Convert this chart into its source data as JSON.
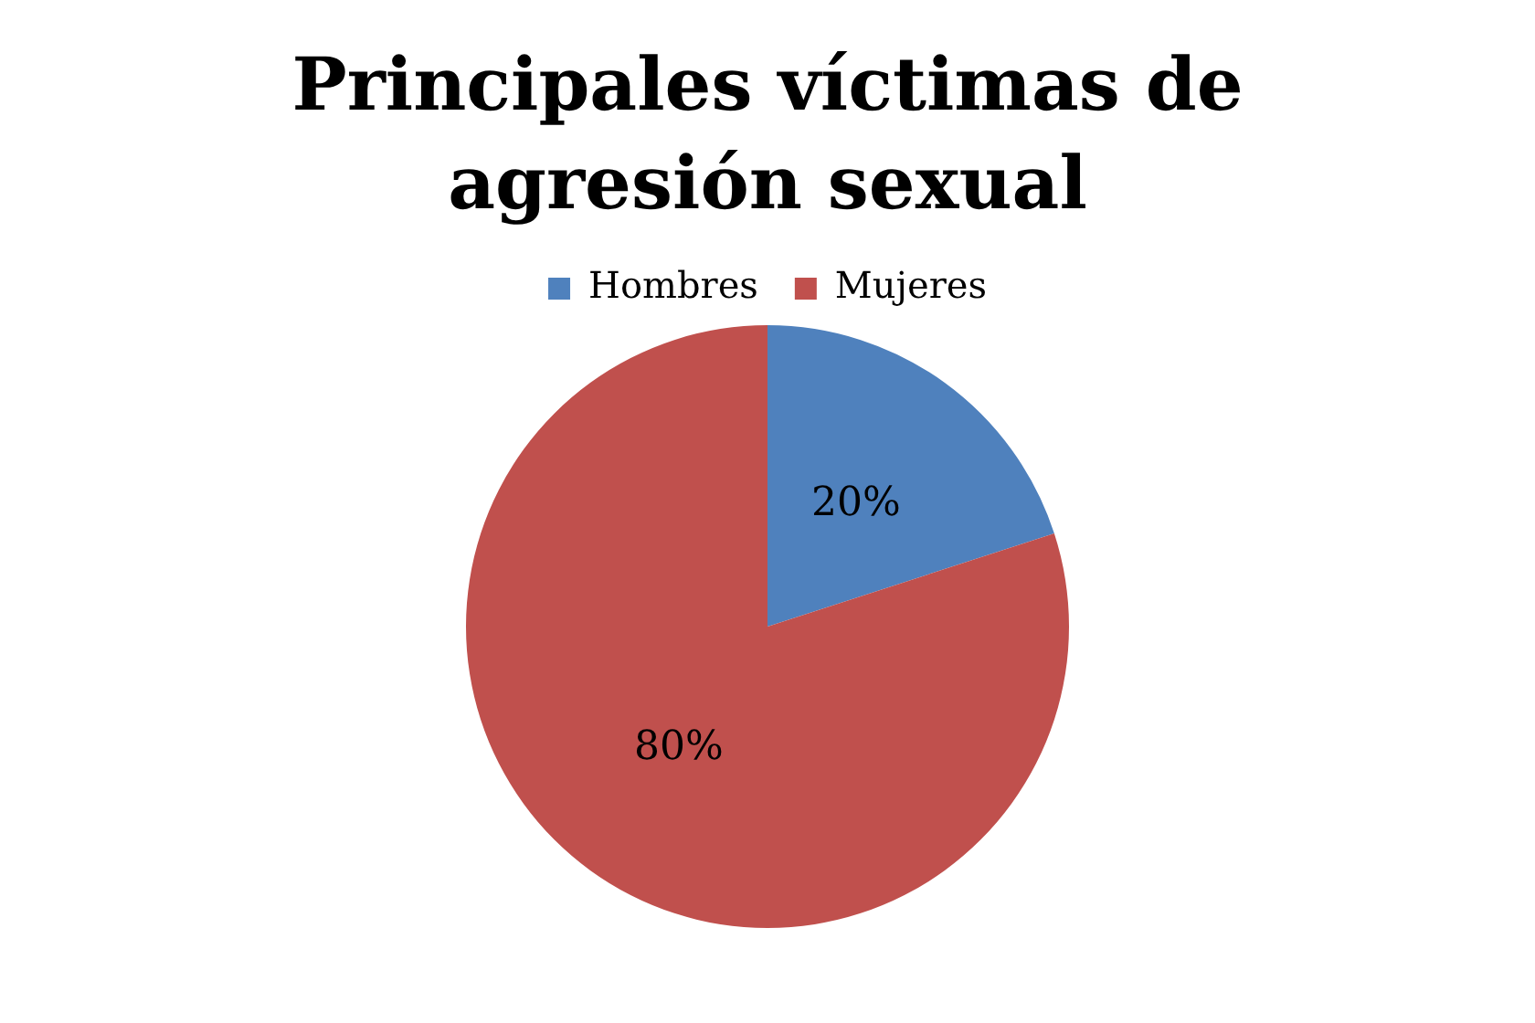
{
  "chart_data": {
    "type": "pie",
    "title": "Principales víctimas de agresión sexual",
    "categories": [
      "Hombres",
      "Mujeres"
    ],
    "values": [
      20,
      80
    ],
    "colors": [
      "#4f81bd",
      "#c0504d"
    ],
    "value_labels": [
      "20%",
      "80%"
    ],
    "legend": "top"
  }
}
